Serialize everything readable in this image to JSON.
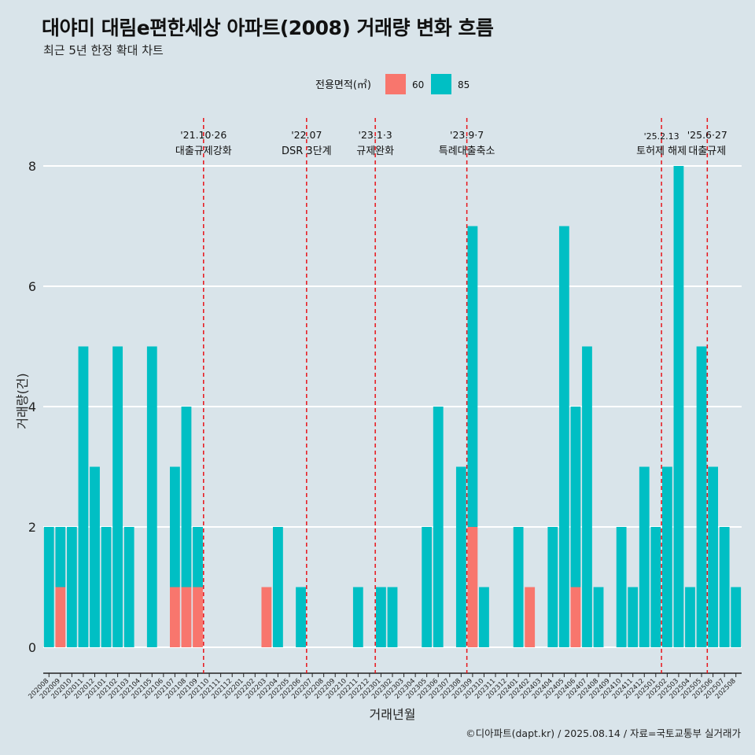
{
  "title": "대야미 대림e편한세상 아파트(2008) 거래량 변화 흐름",
  "subtitle": "최근 5년 한정 확대 차트",
  "caption": "©디아파트(dapt.kr) / 2025.08.14 / 자료=국토교통부 실거래가",
  "colors": {
    "s60": "#f8766d",
    "s85": "#00bfc4",
    "event": "#e8141a",
    "grid": "#ffffff",
    "bg": "#d9e4ea"
  },
  "chart_data": {
    "type": "bar",
    "stacked": true,
    "xlabel": "거래년월",
    "ylabel": "거래량(건)",
    "ylim": [
      0,
      8
    ],
    "yticks": [
      0,
      2,
      4,
      6,
      8
    ],
    "legend": {
      "title": "전용면적(㎡)",
      "position": "top"
    },
    "categories": [
      "202008",
      "202009",
      "202010",
      "202011",
      "202012",
      "202101",
      "202102",
      "202103",
      "202104",
      "202105",
      "202106",
      "202107",
      "202108",
      "202109",
      "202110",
      "202111",
      "202112",
      "202201",
      "202202",
      "202203",
      "202204",
      "202205",
      "202206",
      "202207",
      "202208",
      "202209",
      "202210",
      "202211",
      "202212",
      "202301",
      "202302",
      "202303",
      "202304",
      "202305",
      "202306",
      "202307",
      "202308",
      "202309",
      "202310",
      "202311",
      "202312",
      "202401",
      "202402",
      "202403",
      "202404",
      "202405",
      "202406",
      "202407",
      "202408",
      "202409",
      "202410",
      "202411",
      "202412",
      "202501",
      "202502",
      "202503",
      "202504",
      "202505",
      "202506",
      "202507",
      "202508"
    ],
    "series": [
      {
        "name": "60",
        "values": [
          0,
          1,
          0,
          0,
          0,
          0,
          0,
          0,
          0,
          0,
          0,
          1,
          1,
          1,
          0,
          0,
          0,
          0,
          0,
          1,
          0,
          0,
          0,
          0,
          0,
          0,
          0,
          0,
          0,
          0,
          0,
          0,
          0,
          0,
          0,
          0,
          0,
          2,
          0,
          0,
          0,
          0,
          1,
          0,
          0,
          0,
          1,
          0,
          0,
          0,
          0,
          0,
          0,
          0,
          0,
          0,
          0,
          0,
          0,
          0,
          0
        ]
      },
      {
        "name": "85",
        "values": [
          2,
          1,
          2,
          5,
          3,
          2,
          5,
          2,
          0,
          5,
          0,
          2,
          3,
          1,
          0,
          0,
          0,
          0,
          0,
          0,
          2,
          0,
          1,
          0,
          0,
          0,
          0,
          1,
          0,
          1,
          1,
          0,
          0,
          2,
          4,
          0,
          3,
          5,
          1,
          0,
          0,
          2,
          0,
          0,
          2,
          7,
          3,
          5,
          1,
          0,
          2,
          1,
          3,
          2,
          3,
          8,
          1,
          5,
          3,
          2,
          1
        ]
      }
    ],
    "events": [
      {
        "x": "202110",
        "date": "'21.10·26",
        "label": "대출규제강화"
      },
      {
        "x": "202207",
        "date": "'22.07",
        "label": "DSR 3단계"
      },
      {
        "x": "202301",
        "date": "'23.1·3",
        "label": "규제완화"
      },
      {
        "x": "202309",
        "date": "'23.9·7",
        "label": "특례대출축소"
      },
      {
        "x": "202502",
        "date": "'25.2.13",
        "label": "토허제 해제"
      },
      {
        "x": "202506",
        "date": "'25.6·27",
        "label": "대출규제"
      }
    ]
  }
}
